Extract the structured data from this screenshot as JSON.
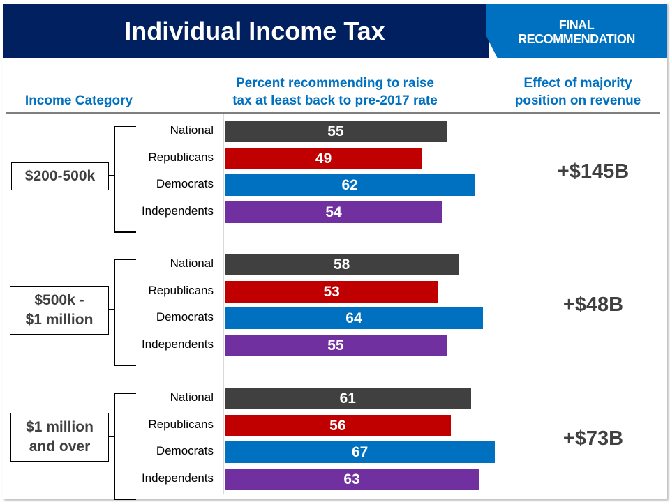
{
  "header": {
    "title": "Individual Income Tax",
    "badge_line1": "FINAL",
    "badge_line2": "RECOMMENDATION"
  },
  "columns": {
    "income_category": "Income Category",
    "percent_line1": "Percent recommending to raise",
    "percent_line2": "tax at least back to pre-2017 rate",
    "effect_line1": "Effect of majority",
    "effect_line2": "position on revenue"
  },
  "colors": {
    "National": "#404040",
    "Republicans": "#c00000",
    "Democrats": "#0070c0",
    "Independents": "#7030a0",
    "header_bg": "#002060",
    "badge_bg": "#0070c0",
    "heading_text": "#0070c0"
  },
  "chart_data": {
    "type": "bar",
    "orientation": "horizontal",
    "title": "Individual Income Tax",
    "xlabel": "Percent recommending to raise tax at least back to pre-2017 rate",
    "subgroups": [
      "National",
      "Republicans",
      "Democrats",
      "Independents"
    ],
    "groups": [
      {
        "category_line1": "$200-500k",
        "category_line2": "",
        "values": [
          55,
          49,
          62,
          54
        ],
        "revenue": "+$145B"
      },
      {
        "category_line1": "$500k -",
        "category_line2": "$1 million",
        "values": [
          58,
          53,
          64,
          55
        ],
        "revenue": "+$48B"
      },
      {
        "category_line1": "$1 million",
        "category_line2": "and over",
        "values": [
          61,
          56,
          67,
          63
        ],
        "revenue": "+$73B"
      }
    ],
    "xlim": [
      0,
      100
    ],
    "grid": false,
    "legend": "none"
  }
}
